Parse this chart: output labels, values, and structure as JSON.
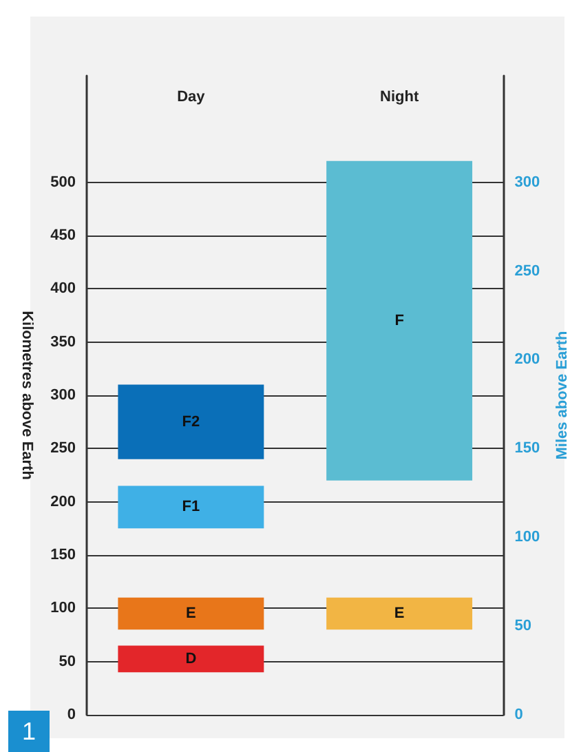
{
  "chart_data": {
    "type": "bar",
    "categories": [
      "Day",
      "Night"
    ],
    "ylabel": "Kilometres above Earth",
    "y2label": "Miles above Earth",
    "ylim": [
      0,
      600
    ],
    "yticks": [
      0,
      50,
      100,
      150,
      200,
      250,
      300,
      350,
      400,
      450,
      500
    ],
    "y2lim": [
      0,
      360
    ],
    "y2ticks": [
      0,
      50,
      100,
      150,
      200,
      250,
      300
    ],
    "grid": "y",
    "legend": false,
    "series": [
      {
        "name": "D",
        "color": "#e3262a",
        "values": [
          25,
          null
        ],
        "base": [
          40,
          null
        ]
      },
      {
        "name": "E",
        "colors": [
          "#e8761a",
          "#f2b544"
        ],
        "values": [
          30,
          30
        ],
        "base": [
          80,
          80
        ]
      },
      {
        "name": "F1",
        "color": "#3fb0e6",
        "values": [
          40,
          null
        ],
        "base": [
          175,
          null
        ]
      },
      {
        "name": "F2",
        "color": "#0a6fb8",
        "values": [
          70,
          null
        ],
        "base": [
          240,
          null
        ]
      },
      {
        "name": "F",
        "color": "#5bbcd2",
        "values": [
          null,
          300
        ],
        "base": [
          null,
          220
        ]
      }
    ],
    "annotations": [
      "1"
    ]
  }
}
